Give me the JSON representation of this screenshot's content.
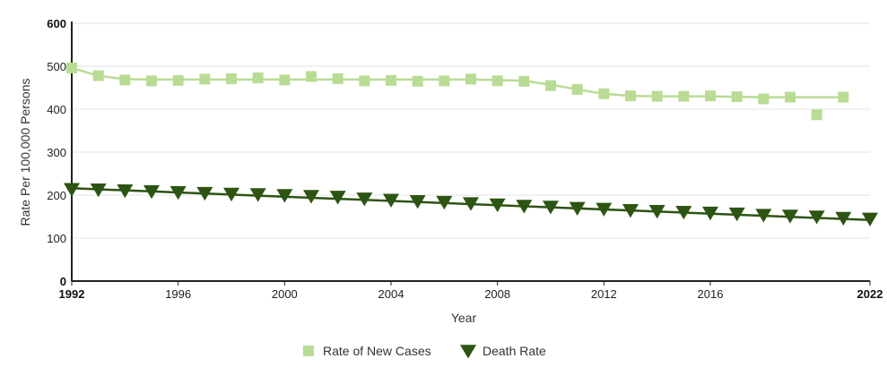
{
  "chart_data": {
    "type": "line",
    "title": "",
    "xlabel": "Year",
    "ylabel": "Rate Per 100,000 Persons",
    "xlim": [
      1992,
      2022
    ],
    "ylim": [
      0,
      600
    ],
    "y_ticks": [
      0,
      100,
      200,
      300,
      400,
      500,
      600
    ],
    "x_ticks": [
      1992,
      1996,
      2000,
      2004,
      2008,
      2012,
      2016,
      2022
    ],
    "grid": true,
    "legend_position": "bottom",
    "series": [
      {
        "name": "Rate of New Cases",
        "color": "#b9dc94",
        "marker": "square",
        "x": [
          1992,
          1993,
          1994,
          1995,
          1996,
          1997,
          1998,
          1999,
          2000,
          2001,
          2002,
          2003,
          2004,
          2005,
          2006,
          2007,
          2008,
          2009,
          2010,
          2011,
          2012,
          2013,
          2014,
          2015,
          2016,
          2017,
          2018,
          2019,
          2020,
          2021
        ],
        "values": [
          496,
          478,
          468,
          466,
          467,
          470,
          471,
          473,
          468,
          476,
          471,
          466,
          467,
          465,
          466,
          470,
          466,
          465,
          455,
          446,
          436,
          431,
          430,
          430,
          431,
          429,
          424,
          428,
          387,
          428
        ],
        "trend_line": {
          "x": [
            1992,
            1993,
            1994,
            1995,
            1996,
            1997,
            1998,
            1999,
            2000,
            2001,
            2002,
            2003,
            2004,
            2005,
            2006,
            2007,
            2008,
            2009,
            2010,
            2011,
            2012,
            2013,
            2014,
            2015,
            2016,
            2017,
            2018,
            2019,
            2020,
            2021
          ],
          "values": [
            496,
            478,
            470,
            469,
            469,
            469,
            469,
            469,
            469,
            469,
            469,
            469,
            469,
            469,
            469,
            469,
            468,
            466,
            457,
            446,
            436,
            431,
            430,
            430,
            430,
            429,
            428,
            428,
            428,
            428
          ]
        }
      },
      {
        "name": "Death Rate",
        "color": "#2d5413",
        "marker": "triangle-down",
        "x": [
          1992,
          1993,
          1994,
          1995,
          1996,
          1997,
          1998,
          1999,
          2000,
          2001,
          2002,
          2003,
          2004,
          2005,
          2006,
          2007,
          2008,
          2009,
          2010,
          2011,
          2012,
          2013,
          2014,
          2015,
          2016,
          2017,
          2018,
          2019,
          2020,
          2021,
          2022
        ],
        "values": [
          214,
          213,
          211,
          209,
          207,
          205,
          203,
          202,
          200,
          198,
          196,
          192,
          189,
          186,
          184,
          181,
          178,
          175,
          173,
          170,
          168,
          165,
          163,
          161,
          159,
          157,
          154,
          152,
          150,
          147,
          145
        ],
        "trend_line": {
          "x": [
            1992,
            2022
          ],
          "values": [
            216,
            142
          ]
        }
      }
    ]
  }
}
